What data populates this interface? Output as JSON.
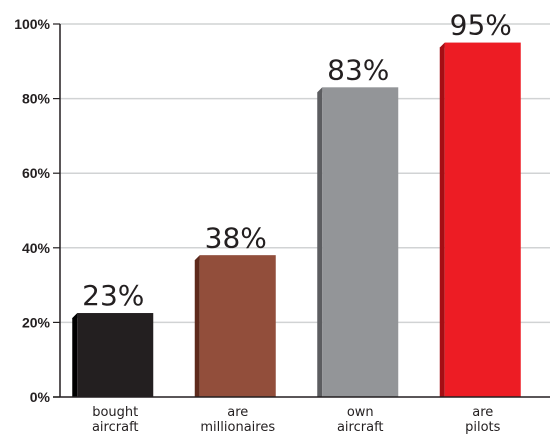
{
  "chart_data": {
    "type": "bar",
    "title": "",
    "xlabel": "",
    "ylabel": "",
    "categories": [
      [
        "bought",
        "aircraft"
      ],
      [
        "are",
        "millionaires"
      ],
      [
        "own",
        "aircraft"
      ],
      [
        "are",
        "pilots"
      ]
    ],
    "values": [
      22.5,
      38,
      83,
      95
    ],
    "data_labels": [
      "23%",
      "38%",
      "83%",
      "95%"
    ],
    "ylim": [
      0,
      100
    ],
    "y_ticks": [
      0,
      20,
      40,
      60,
      80,
      100
    ],
    "y_tick_labels": [
      "0%",
      "20%",
      "40%",
      "60%",
      "80%",
      "100%"
    ],
    "grid": true,
    "legend": "none",
    "colors": [
      "#231f20",
      "#924e3b",
      "#939598",
      "#ed1c24"
    ],
    "side_colors": [
      "#000000",
      "#5e2a1c",
      "#5c5d60",
      "#a50e14"
    ]
  }
}
